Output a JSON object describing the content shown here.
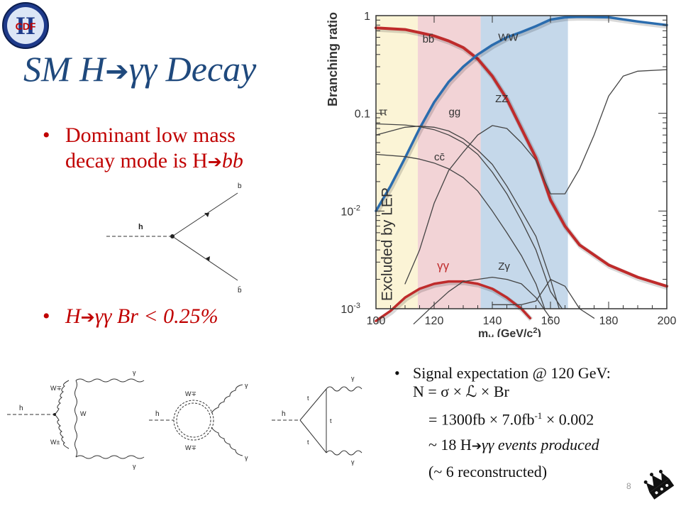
{
  "slide": {
    "title_prefix": "SM H",
    "title_suffix": "γγ Decay",
    "bullet1_line1": "Dominant low mass",
    "bullet1_line2_text": "decay mode is H",
    "bullet1_line2_tail": "bb",
    "bullet2_prefix": "H",
    "bullet2_suffix": "γγ Br < 0.25%",
    "signal": {
      "line1": "Signal expectation @ 120 GeV:",
      "line2": "N = σ × ℒ × Br",
      "line3_a": "= 1300fb × 7.0fb",
      "line3_sup": "-1",
      "line3_b": " × 0.002",
      "line4_a": "~ 18 H",
      "line4_b": "γγ events produced",
      "line5": "(~ 6 reconstructed)"
    },
    "page_number": "8",
    "logo_text": "CDF",
    "logo_letter": "II"
  },
  "diagram_bbar": {
    "h": "h",
    "b": "b",
    "bbar": "b̄"
  },
  "diagrams_gg": {
    "d1": {
      "h": "h",
      "w1": "W∓",
      "w2": "W",
      "w3": "W±",
      "g1": "γ",
      "g2": "γ"
    },
    "d2": {
      "h": "h",
      "w1": "W∓",
      "w3": "W∓",
      "g1": "γ",
      "g2": "γ"
    },
    "d3": {
      "h": "h",
      "t1": "t",
      "t2": "t",
      "t3": "t",
      "g1": "γ",
      "g2": "γ"
    }
  },
  "chart_data": {
    "type": "line",
    "ylabel": "Branching ratio",
    "xlabel": "m_H (GeV/c²)",
    "xlim": [
      100,
      200
    ],
    "ylim": [
      0.001,
      1
    ],
    "log_y": true,
    "x_ticks": [
      "100",
      "120",
      "140",
      "160",
      "180",
      "200"
    ],
    "y_ticks": [
      {
        "v": 1,
        "label": "1"
      },
      {
        "v": 0.1,
        "label": "0.1"
      },
      {
        "v": 0.01,
        "label": "10",
        "sup": "-2"
      },
      {
        "v": 0.001,
        "label": "10",
        "sup": "-3"
      }
    ],
    "bands": [
      {
        "name": "Excluded by LEP",
        "from": 100,
        "to": 114.4,
        "color": "#fbf4d6"
      },
      {
        "name": "",
        "from": 114.4,
        "to": 136,
        "color": "#f2d3d6"
      },
      {
        "name": "",
        "from": 136,
        "to": 166,
        "color": "#c5d8ea"
      }
    ],
    "series": [
      {
        "name": "bb̄",
        "color": "#bf2b2b",
        "width": 4,
        "label_at": [
          116,
          0.53
        ],
        "points": [
          [
            100,
            0.75
          ],
          [
            110,
            0.72
          ],
          [
            115,
            0.67
          ],
          [
            120,
            0.62
          ],
          [
            125,
            0.55
          ],
          [
            130,
            0.47
          ],
          [
            135,
            0.36
          ],
          [
            140,
            0.24
          ],
          [
            145,
            0.14
          ],
          [
            150,
            0.07
          ],
          [
            155,
            0.035
          ],
          [
            160,
            0.013
          ],
          [
            165,
            0.007
          ],
          [
            170,
            0.0045
          ],
          [
            180,
            0.0028
          ],
          [
            190,
            0.0021
          ],
          [
            200,
            0.0017
          ]
        ]
      },
      {
        "name": "WW",
        "color": "#2a6cae",
        "width": 3.5,
        "label_at": [
          142,
          0.55
        ],
        "points": [
          [
            100,
            0.01
          ],
          [
            105,
            0.018
          ],
          [
            110,
            0.035
          ],
          [
            115,
            0.07
          ],
          [
            120,
            0.13
          ],
          [
            125,
            0.21
          ],
          [
            130,
            0.3
          ],
          [
            135,
            0.4
          ],
          [
            140,
            0.5
          ],
          [
            145,
            0.6
          ],
          [
            150,
            0.68
          ],
          [
            155,
            0.78
          ],
          [
            160,
            0.91
          ],
          [
            165,
            0.96
          ],
          [
            170,
            0.97
          ],
          [
            180,
            0.96
          ],
          [
            190,
            0.87
          ],
          [
            200,
            0.8
          ]
        ]
      },
      {
        "name": "ZZ",
        "color": "#444444",
        "width": 1.3,
        "label_at": [
          141,
          0.13
        ],
        "points": [
          [
            110,
            0.0018
          ],
          [
            115,
            0.004
          ],
          [
            120,
            0.012
          ],
          [
            125,
            0.026
          ],
          [
            130,
            0.04
          ],
          [
            135,
            0.06
          ],
          [
            140,
            0.075
          ],
          [
            145,
            0.07
          ],
          [
            150,
            0.05
          ],
          [
            155,
            0.033
          ],
          [
            160,
            0.015
          ],
          [
            165,
            0.015
          ],
          [
            170,
            0.027
          ],
          [
            175,
            0.06
          ],
          [
            180,
            0.15
          ],
          [
            185,
            0.24
          ],
          [
            190,
            0.27
          ],
          [
            200,
            0.28
          ]
        ]
      },
      {
        "name": "ττ",
        "color": "#444444",
        "width": 1.3,
        "label_at": [
          101,
          0.095
        ],
        "points": [
          [
            100,
            0.078
          ],
          [
            110,
            0.076
          ],
          [
            115,
            0.073
          ],
          [
            120,
            0.068
          ],
          [
            125,
            0.06
          ],
          [
            130,
            0.05
          ],
          [
            135,
            0.038
          ],
          [
            140,
            0.025
          ],
          [
            145,
            0.015
          ],
          [
            150,
            0.008
          ],
          [
            155,
            0.004
          ],
          [
            160,
            0.0015
          ],
          [
            164,
            0.001
          ]
        ]
      },
      {
        "name": "gg",
        "color": "#444444",
        "width": 1.3,
        "label_at": [
          125,
          0.095
        ],
        "points": [
          [
            100,
            0.06
          ],
          [
            110,
            0.072
          ],
          [
            115,
            0.074
          ],
          [
            120,
            0.072
          ],
          [
            125,
            0.066
          ],
          [
            130,
            0.055
          ],
          [
            135,
            0.042
          ],
          [
            140,
            0.03
          ],
          [
            145,
            0.018
          ],
          [
            150,
            0.01
          ],
          [
            155,
            0.0055
          ],
          [
            160,
            0.002
          ],
          [
            163,
            0.001
          ]
        ]
      },
      {
        "name": "cc̄",
        "color": "#444444",
        "width": 1.3,
        "label_at": [
          120,
          0.033
        ],
        "points": [
          [
            100,
            0.038
          ],
          [
            110,
            0.036
          ],
          [
            115,
            0.034
          ],
          [
            120,
            0.031
          ],
          [
            125,
            0.027
          ],
          [
            130,
            0.022
          ],
          [
            135,
            0.016
          ],
          [
            140,
            0.01
          ],
          [
            145,
            0.006
          ],
          [
            150,
            0.0035
          ],
          [
            155,
            0.0018
          ],
          [
            158,
            0.001
          ]
        ]
      },
      {
        "name": "γγ",
        "color": "#bf2b2b",
        "width": 3.5,
        "label_at": [
          121,
          0.0025
        ],
        "points": [
          [
            100,
            0.00075
          ],
          [
            105,
            0.00095
          ],
          [
            110,
            0.0013
          ],
          [
            115,
            0.0016
          ],
          [
            120,
            0.0018
          ],
          [
            125,
            0.0019
          ],
          [
            130,
            0.0019
          ],
          [
            135,
            0.0018
          ],
          [
            140,
            0.0016
          ],
          [
            145,
            0.0013
          ],
          [
            150,
            0.001
          ],
          [
            153,
            0.0008
          ]
        ]
      },
      {
        "name": "Zγ",
        "color": "#444444",
        "width": 1.3,
        "label_at": [
          142,
          0.0025
        ],
        "points": [
          [
            113,
            0.0007
          ],
          [
            120,
            0.0011
          ],
          [
            125,
            0.0015
          ],
          [
            130,
            0.0019
          ],
          [
            135,
            0.002
          ],
          [
            140,
            0.0021
          ],
          [
            145,
            0.002
          ],
          [
            150,
            0.0018
          ],
          [
            155,
            0.0013
          ],
          [
            160,
            0.0008
          ]
        ]
      },
      {
        "name": "",
        "color": "#444444",
        "width": 1.3,
        "label_at": null,
        "points": [
          [
            140,
            0.0011
          ],
          [
            150,
            0.0011
          ],
          [
            155,
            0.0012
          ],
          [
            160,
            0.002
          ],
          [
            165,
            0.0017
          ],
          [
            170,
            0.001
          ],
          [
            175,
            0.0008
          ]
        ]
      }
    ]
  }
}
